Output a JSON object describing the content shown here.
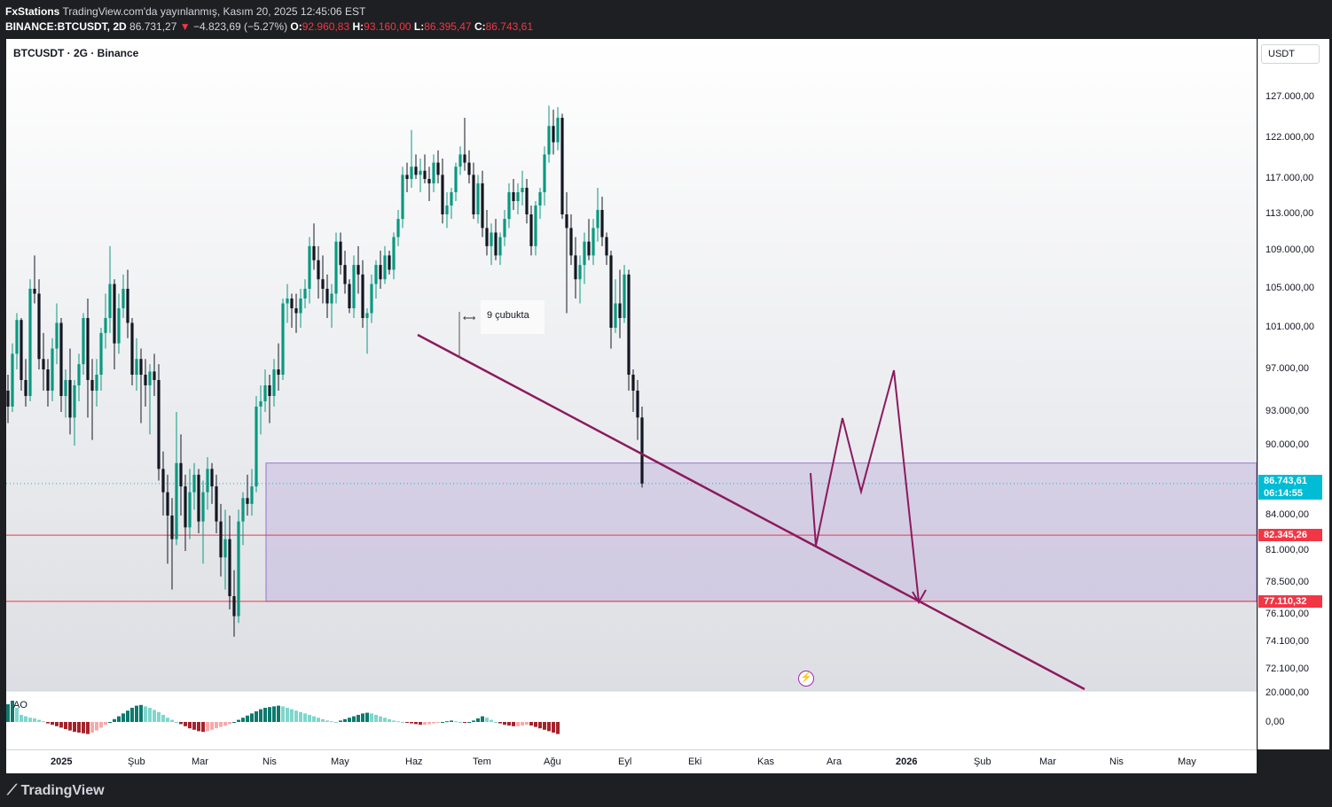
{
  "header": {
    "author": "FxStations",
    "published": "TradingView.com'da yayınlanmış, Kasım 20, 2025 12:45:06 EST",
    "symbol_full": "BINANCE:BTCUSDT, 2D",
    "last": "86.731,27",
    "change": "−4.823,69 (−5.27%)",
    "o_label": "O:",
    "open": "92.960,83",
    "h_label": "H:",
    "high": "93.160,00",
    "l_label": "L:",
    "low": "86.395,47",
    "c_label": "C:",
    "close": "86.743,61"
  },
  "chart_title": "BTCUSDT · 2G · Binance",
  "currency": "USDT",
  "indicator": "AO",
  "annotation": "9 çubukta",
  "price_labels": {
    "current": "86.743,61",
    "countdown": "06:14:55",
    "level1": "82.345,26",
    "level2": "77.110,32"
  },
  "colors": {
    "up": "#089981",
    "down": "#131722",
    "trendline": "#8b1a5e",
    "level_line": "#f23645",
    "zone": "#9575cd",
    "current": "#00bcd4",
    "level_label": "#f23645"
  },
  "price_ticks": [
    "127.000,00",
    "122.000,00",
    "117.000,00",
    "113.000,00",
    "109.000,00",
    "105.000,00",
    "101.000,00",
    "97.000,00",
    "93.000,00",
    "90.000,00",
    "84.000,00",
    "81.000,00",
    "78.500,00",
    "76.100,00",
    "74.100,00",
    "72.100,00",
    "20.000,00",
    "0,00"
  ],
  "time_ticks": [
    {
      "label": "2025",
      "bold": true
    },
    {
      "label": "Şub"
    },
    {
      "label": "Mar"
    },
    {
      "label": "Nis"
    },
    {
      "label": "May"
    },
    {
      "label": "Haz"
    },
    {
      "label": "Tem"
    },
    {
      "label": "Ağu"
    },
    {
      "label": "Eyl"
    },
    {
      "label": "Eki"
    },
    {
      "label": "Kas"
    },
    {
      "label": "Ara"
    },
    {
      "label": "2026",
      "bold": true
    },
    {
      "label": "Şub"
    },
    {
      "label": "Mar"
    },
    {
      "label": "Nis"
    },
    {
      "label": "May"
    }
  ],
  "chart_data": {
    "type": "candlestick",
    "timeframe": "2D",
    "ylim": [
      70000,
      130000
    ],
    "current_price": 86743.61,
    "horizontal_levels": [
      82345.26,
      77110.32
    ],
    "demand_zone": [
      77110.32,
      88500
    ],
    "candles": [
      [
        95000,
        96500,
        92000,
        93500
      ],
      [
        93500,
        99500,
        93000,
        98500
      ],
      [
        98500,
        102500,
        97000,
        101800
      ],
      [
        101800,
        102000,
        95000,
        96000
      ],
      [
        96000,
        98000,
        93500,
        94500
      ],
      [
        94500,
        106000,
        94000,
        105000
      ],
      [
        105000,
        108500,
        103500,
        104500
      ],
      [
        104500,
        106000,
        97000,
        98000
      ],
      [
        98000,
        100500,
        95000,
        97000
      ],
      [
        97000,
        98000,
        93500,
        95000
      ],
      [
        95000,
        100000,
        94000,
        99000
      ],
      [
        99000,
        103500,
        97500,
        101500
      ],
      [
        101500,
        102000,
        93000,
        94500
      ],
      [
        94500,
        97000,
        92500,
        96000
      ],
      [
        96000,
        99000,
        91000,
        92500
      ],
      [
        92500,
        96000,
        90000,
        95500
      ],
      [
        95500,
        98500,
        94000,
        97500
      ],
      [
        97500,
        102500,
        96500,
        102000
      ],
      [
        102000,
        104000,
        92500,
        96000
      ],
      [
        96000,
        98000,
        90500,
        95000
      ],
      [
        95000,
        98000,
        93500,
        96500
      ],
      [
        96500,
        101000,
        95000,
        100500
      ],
      [
        100500,
        104500,
        99000,
        102000
      ],
      [
        102000,
        109500,
        100500,
        105500
      ],
      [
        105500,
        106000,
        97000,
        99500
      ],
      [
        99500,
        104500,
        98500,
        103000
      ],
      [
        103000,
        106500,
        102000,
        105000
      ],
      [
        105000,
        107000,
        100000,
        101500
      ],
      [
        101500,
        102000,
        95500,
        96500
      ],
      [
        96500,
        100000,
        95000,
        98000
      ],
      [
        98000,
        99000,
        92000,
        96500
      ],
      [
        96500,
        98000,
        93500,
        95500
      ],
      [
        95500,
        97500,
        91000,
        96800
      ],
      [
        96800,
        98500,
        94500,
        96000
      ],
      [
        96000,
        97500,
        87000,
        88000
      ],
      [
        88000,
        89500,
        84000,
        86000
      ],
      [
        86000,
        87500,
        80000,
        84000
      ],
      [
        84000,
        85500,
        78000,
        82000
      ],
      [
        82000,
        93000,
        81500,
        88500
      ],
      [
        88500,
        91000,
        84000,
        86500
      ],
      [
        86500,
        87500,
        81000,
        83000
      ],
      [
        83000,
        88000,
        82000,
        86000
      ],
      [
        86000,
        88500,
        84500,
        87500
      ],
      [
        87500,
        88000,
        82500,
        83500
      ],
      [
        83500,
        87000,
        80000,
        86000
      ],
      [
        86000,
        89000,
        84500,
        88000
      ],
      [
        88000,
        88500,
        85000,
        86500
      ],
      [
        86500,
        87500,
        82500,
        83500
      ],
      [
        83500,
        85000,
        79000,
        80500
      ],
      [
        80500,
        84500,
        78000,
        82000
      ],
      [
        82000,
        84000,
        76500,
        77500
      ],
      [
        77500,
        79500,
        74500,
        76000
      ],
      [
        76000,
        84500,
        75500,
        83500
      ],
      [
        83500,
        86000,
        81500,
        85500
      ],
      [
        85500,
        87500,
        84000,
        85000
      ],
      [
        85000,
        88000,
        84000,
        86500
      ],
      [
        86500,
        94500,
        86000,
        93500
      ],
      [
        93500,
        95500,
        91000,
        94000
      ],
      [
        94000,
        97000,
        93000,
        95500
      ],
      [
        95500,
        96500,
        92000,
        94500
      ],
      [
        94500,
        98000,
        93500,
        97000
      ],
      [
        97000,
        99500,
        95000,
        96500
      ],
      [
        96500,
        104000,
        96000,
        103500
      ],
      [
        103500,
        105500,
        101500,
        104000
      ],
      [
        104000,
        104500,
        101000,
        103000
      ],
      [
        103000,
        104500,
        100500,
        102500
      ],
      [
        102500,
        105000,
        101000,
        104000
      ],
      [
        104000,
        106000,
        103000,
        105000
      ],
      [
        105000,
        110500,
        103500,
        109500
      ],
      [
        109500,
        112000,
        107000,
        108000
      ],
      [
        108000,
        109500,
        104000,
        106000
      ],
      [
        106000,
        108500,
        103500,
        105000
      ],
      [
        105000,
        106500,
        102000,
        103500
      ],
      [
        103500,
        105500,
        101000,
        104500
      ],
      [
        104500,
        111000,
        103500,
        110000
      ],
      [
        110000,
        111000,
        106500,
        107500
      ],
      [
        107500,
        109000,
        104500,
        105500
      ],
      [
        105500,
        106000,
        102500,
        103000
      ],
      [
        103000,
        108500,
        102000,
        107500
      ],
      [
        107500,
        109500,
        104500,
        106500
      ],
      [
        106500,
        108000,
        101000,
        102000
      ],
      [
        102000,
        103000,
        98500,
        102500
      ],
      [
        102500,
        106500,
        101500,
        105500
      ],
      [
        105500,
        108000,
        104000,
        107500
      ],
      [
        107500,
        109000,
        105000,
        106000
      ],
      [
        106000,
        109500,
        105500,
        108500
      ],
      [
        108500,
        109000,
        106500,
        107000
      ],
      [
        107000,
        111000,
        106000,
        110500
      ],
      [
        110500,
        113500,
        109500,
        112500
      ],
      [
        112500,
        118500,
        111500,
        117500
      ],
      [
        117500,
        119000,
        115500,
        117000
      ],
      [
        117000,
        123000,
        116000,
        118500
      ],
      [
        118500,
        120000,
        117000,
        117500
      ],
      [
        117500,
        119500,
        115500,
        118000
      ],
      [
        118000,
        120000,
        116500,
        117000
      ],
      [
        117000,
        118500,
        114500,
        116500
      ],
      [
        116500,
        120000,
        115500,
        119000
      ],
      [
        119000,
        120500,
        116500,
        117500
      ],
      [
        117500,
        119500,
        112000,
        113000
      ],
      [
        113000,
        115500,
        111500,
        114000
      ],
      [
        114000,
        116000,
        112500,
        115500
      ],
      [
        115500,
        119000,
        114500,
        118500
      ],
      [
        118500,
        121000,
        117500,
        120000
      ],
      [
        120000,
        124500,
        118000,
        119000
      ],
      [
        119000,
        120500,
        116500,
        117500
      ],
      [
        117500,
        119000,
        112500,
        113000
      ],
      [
        113000,
        117500,
        112000,
        116500
      ],
      [
        116500,
        118000,
        110500,
        111500
      ],
      [
        111500,
        113500,
        108500,
        109500
      ],
      [
        109500,
        112000,
        107500,
        111000
      ],
      [
        111000,
        112500,
        108000,
        108500
      ],
      [
        108500,
        111000,
        107500,
        110500
      ],
      [
        110500,
        113500,
        109500,
        112500
      ],
      [
        112500,
        116500,
        111500,
        115500
      ],
      [
        115500,
        117000,
        113500,
        114500
      ],
      [
        114500,
        116500,
        113000,
        115500
      ],
      [
        115500,
        118000,
        114000,
        116000
      ],
      [
        116000,
        117000,
        112000,
        113000
      ],
      [
        113000,
        114000,
        108500,
        109500
      ],
      [
        109500,
        114500,
        108500,
        114000
      ],
      [
        114000,
        116000,
        112500,
        115500
      ],
      [
        115500,
        121000,
        114000,
        120000
      ],
      [
        120000,
        126000,
        119000,
        123500
      ],
      [
        123500,
        125500,
        120000,
        121500
      ],
      [
        121500,
        125800,
        120500,
        124500
      ],
      [
        124500,
        125000,
        112500,
        113000
      ],
      [
        113000,
        115500,
        102500,
        111500
      ],
      [
        111500,
        113000,
        107500,
        108500
      ],
      [
        108500,
        110500,
        104000,
        106000
      ],
      [
        106000,
        108500,
        103500,
        107500
      ],
      [
        107500,
        111000,
        105500,
        110000
      ],
      [
        110000,
        112500,
        108000,
        108500
      ],
      [
        108500,
        112500,
        107500,
        111500
      ],
      [
        111500,
        116000,
        110000,
        113500
      ],
      [
        113500,
        115000,
        109500,
        110500
      ],
      [
        110500,
        111000,
        107500,
        108500
      ],
      [
        108500,
        109000,
        99000,
        101000
      ],
      [
        101000,
        106000,
        100500,
        103500
      ],
      [
        103500,
        107000,
        100000,
        102000
      ],
      [
        102000,
        107500,
        101500,
        106500
      ],
      [
        106500,
        107000,
        95000,
        96500
      ],
      [
        96500,
        97000,
        93000,
        95000
      ],
      [
        95000,
        96000,
        90500,
        92500
      ],
      [
        92500,
        93500,
        86400,
        86740
      ]
    ],
    "ao": [
      2.5,
      3,
      2,
      1,
      0.8,
      0.6,
      0.5,
      0.3,
      0.1,
      -0.2,
      -0.4,
      -0.6,
      -0.8,
      -1,
      -1.2,
      -1.4,
      -1.5,
      -1.6,
      -1.7,
      -1.5,
      -1.2,
      -0.8,
      -0.4,
      0,
      0.4,
      0.8,
      1.2,
      1.6,
      2,
      2.3,
      2.4,
      2.2,
      2,
      1.7,
      1.4,
      1,
      0.6,
      0.3,
      0,
      -0.3,
      -0.6,
      -0.9,
      -1.1,
      -1.3,
      -1.4,
      -1.3,
      -1.1,
      -0.9,
      -0.7,
      -0.5,
      -0.3,
      0,
      0.3,
      0.6,
      0.9,
      1.2,
      1.5,
      1.8,
      2,
      2.1,
      2.2,
      2.3,
      2.2,
      2,
      1.8,
      1.6,
      1.4,
      1.2,
      1,
      0.8,
      0.6,
      0.4,
      0.2,
      0.1,
      0,
      0.2,
      0.4,
      0.6,
      0.8,
      1,
      1.2,
      1.3,
      1.2,
      1,
      0.8,
      0.6,
      0.4,
      0.2,
      0.1,
      0,
      -0.1,
      -0.2,
      -0.3,
      -0.4,
      -0.4,
      -0.3,
      -0.2,
      -0.1,
      0,
      0.1,
      0.2,
      0.1,
      0,
      -0.1,
      0,
      0.2,
      0.5,
      0.8,
      0.6,
      0.3,
      0,
      -0.2,
      -0.4,
      -0.5,
      -0.6,
      -0.6,
      -0.5,
      -0.4,
      -0.5,
      -0.7,
      -0.9,
      -1.1,
      -1.3,
      -1.5,
      -1.7
    ]
  }
}
